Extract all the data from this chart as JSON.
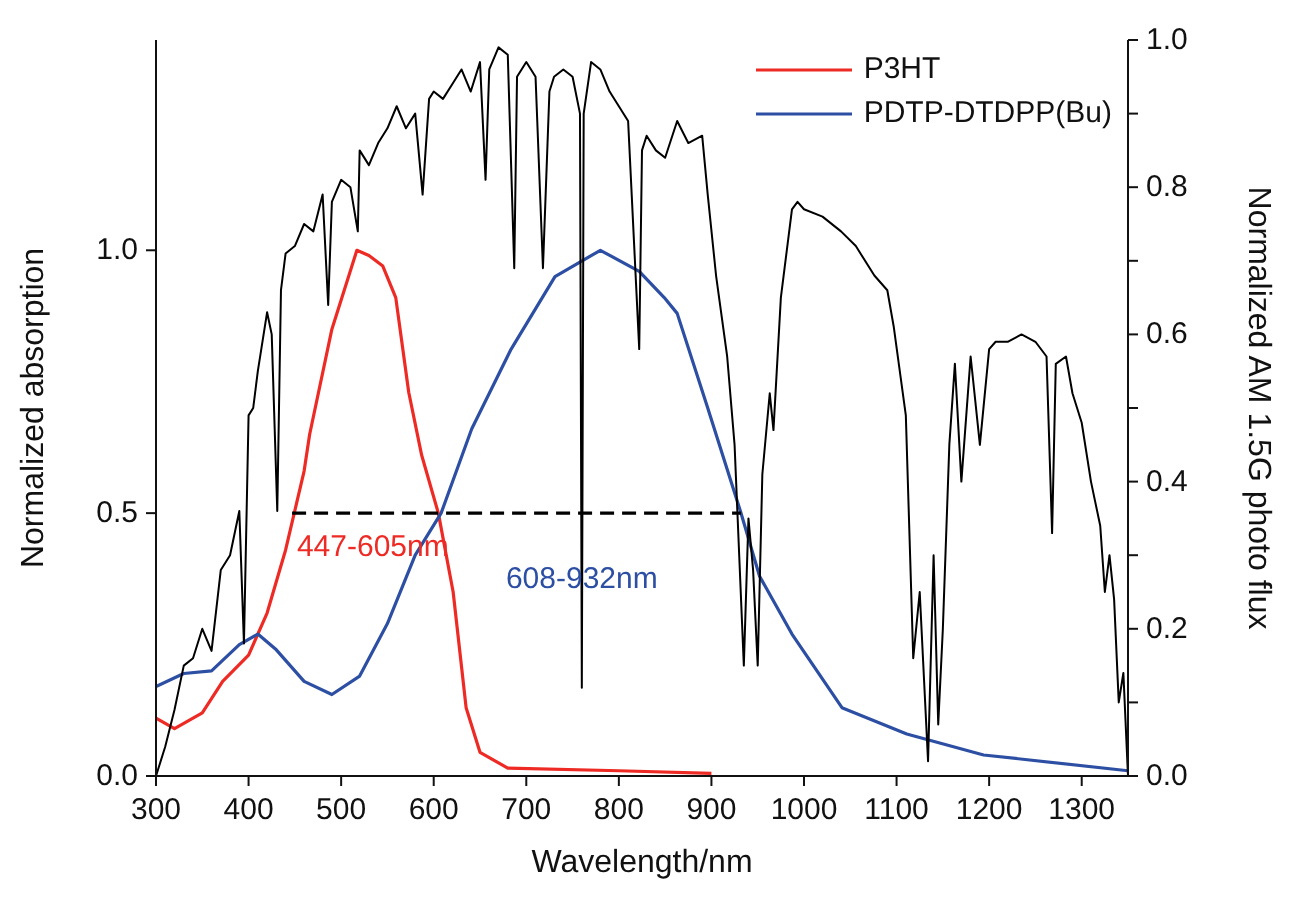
{
  "chart_data": {
    "type": "line",
    "xlabel": "Wavelength/nm",
    "ylabel": "Normalized absorption",
    "y2label": "Normalized AM 1.5G photo flux",
    "xlim": [
      300,
      1350
    ],
    "xticks": [
      300,
      400,
      500,
      600,
      700,
      800,
      900,
      1000,
      1100,
      1200,
      1300
    ],
    "ylim": [
      0,
      1.4
    ],
    "yticks": [
      {
        "value": 0,
        "label": "0.0"
      },
      {
        "value": 0.5,
        "label": "0.5"
      },
      {
        "value": 1,
        "label": "1.0"
      }
    ],
    "y2lim": [
      0,
      1
    ],
    "y2ticks": [
      {
        "value": 0,
        "label": "0.0"
      },
      {
        "value": 0.1,
        "label": null
      },
      {
        "value": 0.2,
        "label": "0.2"
      },
      {
        "value": 0.3,
        "label": null
      },
      {
        "value": 0.4,
        "label": "0.4"
      },
      {
        "value": 0.5,
        "label": null
      },
      {
        "value": 0.6,
        "label": "0.6"
      },
      {
        "value": 0.7,
        "label": null
      },
      {
        "value": 0.8,
        "label": "0.8"
      },
      {
        "value": 0.9,
        "label": null
      },
      {
        "value": 1,
        "label": "1.0"
      }
    ],
    "legend": "top right",
    "grid": false,
    "marker": "none",
    "annotations": [
      "447-605nm",
      "608-932nm"
    ],
    "series": [
      {
        "name": "P3HT",
        "color": "#ee2a24",
        "x": [
          300,
          320,
          350,
          372,
          400,
          420,
          440,
          460,
          466,
          490,
          517,
          530,
          545,
          559,
          573,
          587,
          605,
          621,
          635,
          650,
          680,
          800,
          900
        ],
        "values": [
          0.11,
          0.09,
          0.12,
          0.18,
          0.23,
          0.31,
          0.43,
          0.58,
          0.65,
          0.85,
          1.0,
          0.99,
          0.97,
          0.91,
          0.73,
          0.61,
          0.5,
          0.35,
          0.13,
          0.045,
          0.015,
          0.01,
          0.005
        ]
      },
      {
        "name": "PDTP-DTDPP(Bu)",
        "color": "#2d4fa3",
        "x": [
          300,
          330,
          360,
          390,
          410,
          430,
          460,
          490,
          520,
          550,
          580,
          608,
          641,
          683,
          731,
          780,
          822,
          849,
          863,
          896,
          932,
          952,
          987,
          1041,
          1111,
          1194,
          1350
        ],
        "values": [
          0.17,
          0.195,
          0.2,
          0.25,
          0.27,
          0.24,
          0.18,
          0.155,
          0.19,
          0.29,
          0.42,
          0.5,
          0.66,
          0.81,
          0.95,
          1.0,
          0.96,
          0.91,
          0.88,
          0.7,
          0.5,
          0.38,
          0.27,
          0.13,
          0.08,
          0.04,
          0.01
        ]
      },
      {
        "color": "#000000",
        "line_style": "dashed",
        "x": [
          447,
          932
        ],
        "values": [
          0.5,
          0.5
        ]
      },
      {
        "color": "#000000",
        "axis": "y2",
        "x": [
          300,
          310,
          320,
          330,
          340,
          350,
          360,
          370,
          380,
          390,
          395,
          400,
          405,
          410,
          420,
          425,
          431,
          435,
          440,
          450,
          460,
          470,
          480,
          486,
          490,
          500,
          510,
          518,
          520,
          530,
          540,
          550,
          560,
          570,
          580,
          588,
          595,
          600,
          610,
          620,
          630,
          640,
          650,
          656,
          660,
          670,
          680,
          687,
          690,
          700,
          710,
          718,
          725,
          730,
          740,
          750,
          758,
          760,
          762,
          770,
          780,
          790,
          800,
          810,
          822,
          825,
          830,
          840,
          850,
          863,
          875,
          890,
          896,
          905,
          917,
          925,
          935,
          940,
          945,
          950,
          955,
          963,
          967,
          975,
          987,
          993,
          1000,
          1020,
          1040,
          1056,
          1076,
          1090,
          1097,
          1110,
          1118,
          1125,
          1134,
          1140,
          1145,
          1150,
          1157,
          1163,
          1170,
          1180,
          1190,
          1200,
          1207,
          1220,
          1235,
          1250,
          1262,
          1268,
          1272,
          1283,
          1290,
          1300,
          1310,
          1320,
          1325,
          1330,
          1335,
          1340,
          1345,
          1350
        ],
        "values": [
          0,
          0.04,
          0.09,
          0.15,
          0.16,
          0.2,
          0.17,
          0.28,
          0.3,
          0.36,
          0.18,
          0.49,
          0.5,
          0.55,
          0.63,
          0.6,
          0.36,
          0.66,
          0.71,
          0.72,
          0.75,
          0.74,
          0.79,
          0.64,
          0.78,
          0.81,
          0.8,
          0.74,
          0.85,
          0.83,
          0.86,
          0.88,
          0.91,
          0.88,
          0.9,
          0.79,
          0.92,
          0.93,
          0.92,
          0.94,
          0.96,
          0.93,
          0.97,
          0.81,
          0.96,
          0.99,
          0.98,
          0.69,
          0.95,
          0.97,
          0.95,
          0.69,
          0.93,
          0.95,
          0.96,
          0.95,
          0.9,
          0.12,
          0.9,
          0.97,
          0.96,
          0.93,
          0.91,
          0.89,
          0.58,
          0.85,
          0.87,
          0.85,
          0.84,
          0.89,
          0.86,
          0.87,
          0.79,
          0.68,
          0.57,
          0.45,
          0.15,
          0.35,
          0.28,
          0.15,
          0.41,
          0.52,
          0.47,
          0.65,
          0.77,
          0.78,
          0.77,
          0.76,
          0.74,
          0.72,
          0.68,
          0.66,
          0.61,
          0.49,
          0.16,
          0.25,
          0.02,
          0.3,
          0.07,
          0.2,
          0.45,
          0.56,
          0.4,
          0.57,
          0.45,
          0.58,
          0.59,
          0.59,
          0.6,
          0.59,
          0.57,
          0.33,
          0.56,
          0.57,
          0.52,
          0.48,
          0.4,
          0.34,
          0.25,
          0.3,
          0.24,
          0.1,
          0.14,
          0.0
        ]
      }
    ]
  }
}
